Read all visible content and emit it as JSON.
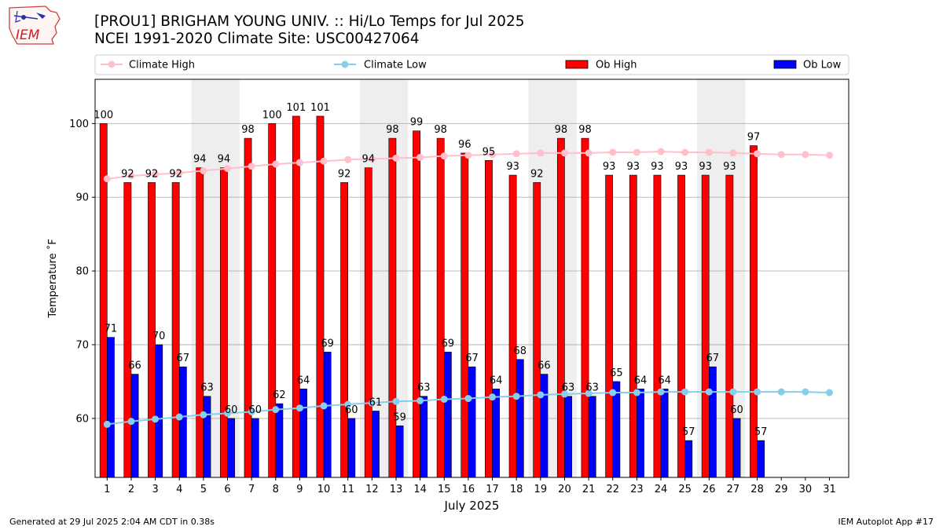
{
  "header": {
    "title_line1": "[PROU1] BRIGHAM YOUNG UNIV. :: Hi/Lo Temps for Jul 2025",
    "title_line2": "NCEI 1991-2020 Climate Site: USC00427064",
    "logo_text": "IEM"
  },
  "footer": {
    "left": "Generated at 29 Jul 2025 2:04 AM CDT in 0.38s",
    "right": "IEM Autoplot App #17"
  },
  "colors": {
    "ob_high": "#ff0000",
    "ob_low": "#0000ff",
    "climate_high": "#ffc0cb",
    "climate_low": "#87ceeb",
    "weekend_shade": "#eeeeee",
    "grid": "#b0b0b0"
  },
  "chart_data": {
    "type": "bar",
    "xlabel": "July 2025",
    "ylabel": "Temperature ˚F",
    "ylim": [
      52,
      106
    ],
    "yticks": [
      60,
      70,
      80,
      90,
      100
    ],
    "grid": "horizontal",
    "legend_position": "top",
    "categories": [
      "1",
      "2",
      "3",
      "4",
      "5",
      "6",
      "7",
      "8",
      "9",
      "10",
      "11",
      "12",
      "13",
      "14",
      "15",
      "16",
      "17",
      "18",
      "19",
      "20",
      "21",
      "22",
      "23",
      "24",
      "25",
      "26",
      "27",
      "28",
      "29",
      "30",
      "31"
    ],
    "shaded_days": [
      5,
      6,
      12,
      13,
      19,
      20,
      26,
      27
    ],
    "series": [
      {
        "name": "Climate High",
        "kind": "line",
        "values": [
          92.5,
          92.9,
          93.1,
          93.3,
          93.6,
          93.9,
          94.2,
          94.5,
          94.7,
          94.9,
          95.1,
          95.2,
          95.3,
          95.4,
          95.6,
          95.7,
          95.8,
          95.9,
          96.0,
          96.0,
          96.0,
          96.1,
          96.1,
          96.2,
          96.1,
          96.1,
          96.0,
          95.9,
          95.8,
          95.8,
          95.7
        ]
      },
      {
        "name": "Climate Low",
        "kind": "line",
        "values": [
          59.2,
          59.6,
          59.9,
          60.2,
          60.5,
          60.7,
          60.9,
          61.2,
          61.4,
          61.7,
          61.9,
          62.1,
          62.3,
          62.4,
          62.6,
          62.7,
          62.9,
          63.0,
          63.2,
          63.3,
          63.4,
          63.5,
          63.5,
          63.6,
          63.6,
          63.6,
          63.6,
          63.6,
          63.6,
          63.6,
          63.5
        ]
      },
      {
        "name": "Ob High",
        "kind": "bar",
        "values": [
          100,
          92,
          92,
          92,
          94,
          94,
          98,
          100,
          101,
          101,
          92,
          94,
          98,
          99,
          98,
          96,
          95,
          93,
          92,
          98,
          98,
          93,
          93,
          93,
          93,
          93,
          93,
          97,
          null,
          null,
          null
        ]
      },
      {
        "name": "Ob Low",
        "kind": "bar",
        "values": [
          71,
          66,
          70,
          67,
          63,
          60,
          60,
          62,
          64,
          69,
          60,
          61,
          59,
          63,
          69,
          67,
          64,
          68,
          66,
          63,
          63,
          65,
          64,
          64,
          57,
          67,
          60,
          57,
          null,
          null,
          null
        ]
      }
    ]
  }
}
